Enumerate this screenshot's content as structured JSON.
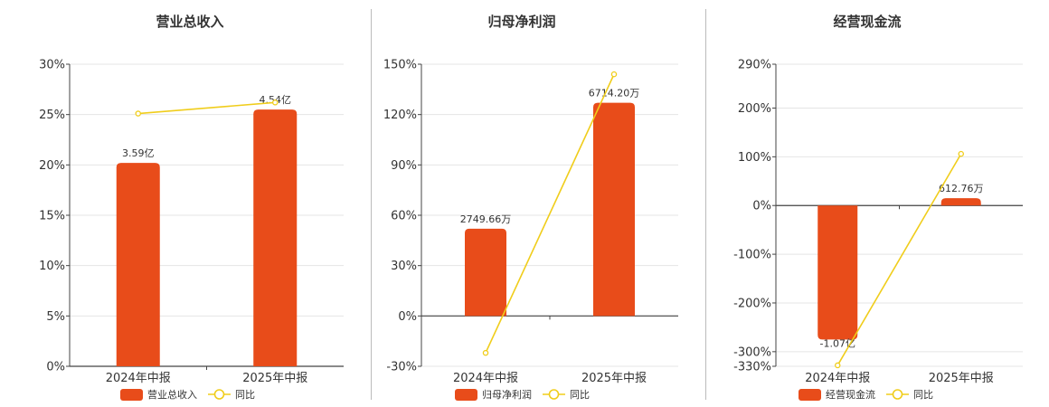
{
  "colors": {
    "bar": "#E84C1A",
    "line": "#F0CD1B",
    "grid": "#e5e5e5",
    "axis": "#444444",
    "text": "#333333"
  },
  "chart_data": [
    {
      "type": "bar",
      "title": "营业总收入",
      "categories": [
        "2024年中报",
        "2025年中报"
      ],
      "series": [
        {
          "name": "营业总收入",
          "type": "bar",
          "values": [
            20.2,
            25.5
          ],
          "labels": [
            "3.59亿",
            "4.54亿"
          ]
        },
        {
          "name": "同比",
          "type": "line",
          "values": [
            25.1,
            26.2
          ]
        }
      ],
      "ylim": [
        0,
        30
      ],
      "yticks": [
        "30%",
        "25%",
        "20%",
        "15%",
        "10%",
        "5%",
        "0%"
      ],
      "ytick_values": [
        30,
        25,
        20,
        15,
        10,
        5,
        0
      ],
      "grid": true,
      "legend": "bottom"
    },
    {
      "type": "bar",
      "title": "归母净利润",
      "categories": [
        "2024年中报",
        "2025年中报"
      ],
      "series": [
        {
          "name": "归母净利润",
          "type": "bar",
          "values": [
            52,
            127
          ],
          "labels": [
            "2749.66万",
            "6714.20万"
          ]
        },
        {
          "name": "同比",
          "type": "line",
          "values": [
            -22,
            144
          ]
        }
      ],
      "ylim": [
        -30,
        150
      ],
      "yticks": [
        "150%",
        "120%",
        "90%",
        "60%",
        "30%",
        "0%",
        "-30%"
      ],
      "ytick_values": [
        150,
        120,
        90,
        60,
        30,
        0,
        -30
      ],
      "grid": true,
      "legend": "bottom"
    },
    {
      "type": "bar",
      "title": "经营现金流",
      "categories": [
        "2024年中报",
        "2025年中报"
      ],
      "series": [
        {
          "name": "经营现金流",
          "type": "bar",
          "values": [
            -275,
            15
          ],
          "labels": [
            "-1.07亿",
            "612.76万"
          ]
        },
        {
          "name": "同比",
          "type": "line",
          "values": [
            -328,
            106
          ]
        }
      ],
      "ylim": [
        -330,
        290
      ],
      "yticks": [
        "290%",
        "200%",
        "100%",
        "0%",
        "-100%",
        "-200%",
        "-300%",
        "-330%"
      ],
      "ytick_values": [
        290,
        200,
        100,
        0,
        -100,
        -200,
        -300,
        -330
      ],
      "grid": true,
      "legend": "bottom"
    }
  ]
}
